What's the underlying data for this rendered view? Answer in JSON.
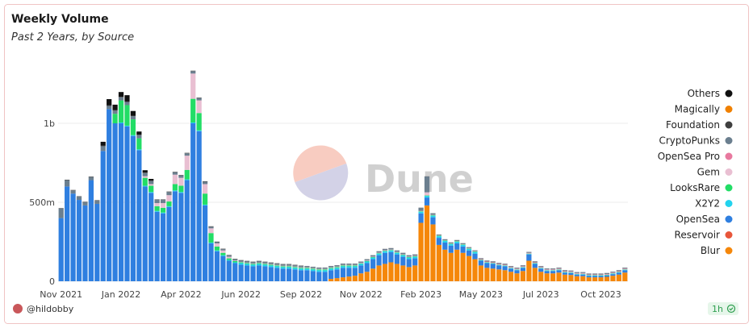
{
  "chart_data": {
    "type": "stacked-bar",
    "title": "Weekly Volume",
    "subtitle": "Past 2 Years, by Source",
    "categories": [
      "Nov 2021",
      null,
      null,
      null,
      null,
      null,
      null,
      null,
      null,
      null,
      "Jan 2022",
      null,
      null,
      null,
      null,
      null,
      null,
      null,
      null,
      null,
      "Apr 2022",
      null,
      null,
      null,
      null,
      null,
      null,
      null,
      null,
      null,
      "Jun 2022",
      null,
      null,
      null,
      null,
      null,
      null,
      null,
      null,
      null,
      "Sep 2022",
      null,
      null,
      null,
      null,
      null,
      null,
      null,
      null,
      null,
      "Nov 2022",
      null,
      null,
      null,
      null,
      null,
      null,
      null,
      null,
      null,
      "Feb 2023",
      null,
      null,
      null,
      null,
      null,
      null,
      null,
      null,
      null,
      "May 2023",
      null,
      null,
      null,
      null,
      null,
      null,
      null,
      null,
      null,
      "Jul 2023",
      null,
      null,
      null,
      null,
      null,
      null,
      null,
      null,
      null,
      "Oct 2023",
      null,
      null,
      null,
      null
    ],
    "ylim": [
      0,
      1400
    ],
    "yticks": [
      0,
      {
        "value": 500,
        "label": "500m"
      },
      {
        "value": 1000,
        "label": "1b"
      }
    ],
    "grid": true,
    "legend": "right",
    "series": [
      {
        "name": "Blur",
        "color": "#f5870a",
        "values": [
          0,
          0,
          0,
          0,
          0,
          0,
          0,
          0,
          0,
          0,
          0,
          0,
          0,
          0,
          0,
          0,
          0,
          0,
          0,
          0,
          0,
          0,
          0,
          0,
          0,
          0,
          0,
          0,
          0,
          0,
          0,
          0,
          0,
          0,
          0,
          0,
          0,
          0,
          0,
          0,
          0,
          0,
          0,
          0,
          0,
          15,
          20,
          25,
          30,
          35,
          50,
          60,
          80,
          100,
          110,
          120,
          110,
          100,
          90,
          100,
          370,
          480,
          360,
          230,
          200,
          180,
          200,
          180,
          160,
          140,
          100,
          85,
          80,
          75,
          70,
          60,
          50,
          65,
          130,
          85,
          60,
          50,
          50,
          55,
          42,
          40,
          32,
          32,
          25,
          25,
          25,
          28,
          35,
          42,
          55
        ]
      },
      {
        "name": "Reservoir",
        "color": "#e8563a",
        "values": [
          0,
          0,
          0,
          0,
          0,
          0,
          0,
          0,
          0,
          0,
          0,
          0,
          0,
          0,
          0,
          0,
          0,
          0,
          0,
          0,
          0,
          0,
          0,
          0,
          0,
          0,
          0,
          0,
          0,
          0,
          0,
          0,
          0,
          0,
          0,
          0,
          0,
          0,
          0,
          0,
          0,
          0,
          0,
          0,
          0,
          0,
          0,
          0,
          0,
          0,
          0,
          0,
          0,
          0,
          0,
          0,
          0,
          0,
          0,
          0,
          0,
          0,
          0,
          0,
          0,
          0,
          0,
          0,
          0,
          0,
          0,
          0,
          0,
          0,
          0,
          0,
          0,
          0,
          0,
          0,
          0,
          0,
          0,
          0,
          0,
          0,
          0,
          0,
          0,
          0,
          0,
          0,
          0,
          0,
          0
        ]
      },
      {
        "name": "OpenSea",
        "color": "#2f7fe0",
        "values": [
          400,
          600,
          555,
          515,
          480,
          640,
          490,
          825,
          1090,
          1000,
          1000,
          980,
          920,
          830,
          600,
          560,
          440,
          430,
          470,
          570,
          560,
          640,
          1000,
          950,
          480,
          240,
          190,
          160,
          130,
          115,
          105,
          100,
          95,
          100,
          95,
          90,
          85,
          80,
          80,
          75,
          70,
          70,
          65,
          60,
          60,
          55,
          55,
          60,
          55,
          50,
          50,
          55,
          60,
          65,
          70,
          65,
          60,
          55,
          50,
          45,
          60,
          50,
          45,
          45,
          45,
          45,
          40,
          40,
          35,
          35,
          30,
          30,
          30,
          25,
          25,
          20,
          20,
          20,
          40,
          25,
          20,
          15,
          15,
          15,
          12,
          12,
          10,
          10,
          8,
          8,
          8,
          8,
          10,
          12,
          15
        ]
      },
      {
        "name": "X2Y2",
        "color": "#22d3ee",
        "values": [
          0,
          0,
          0,
          0,
          0,
          0,
          0,
          0,
          0,
          0,
          5,
          5,
          5,
          5,
          5,
          5,
          5,
          5,
          5,
          5,
          5,
          5,
          5,
          5,
          5,
          5,
          5,
          5,
          5,
          5,
          10,
          10,
          10,
          10,
          10,
          10,
          10,
          10,
          10,
          10,
          10,
          10,
          10,
          10,
          10,
          10,
          10,
          10,
          10,
          10,
          10,
          10,
          10,
          10,
          10,
          10,
          10,
          10,
          10,
          10,
          10,
          10,
          10,
          10,
          10,
          10,
          10,
          10,
          10,
          10,
          3,
          3,
          3,
          3,
          3,
          3,
          3,
          3,
          3,
          3,
          3,
          3,
          3,
          3,
          3,
          3,
          3,
          3,
          3,
          3,
          3,
          3,
          3,
          3,
          3
        ]
      },
      {
        "name": "LooksRare",
        "color": "#22dd66",
        "values": [
          0,
          0,
          0,
          0,
          0,
          0,
          0,
          0,
          0,
          60,
          140,
          130,
          100,
          70,
          50,
          40,
          30,
          30,
          30,
          40,
          40,
          60,
          150,
          110,
          70,
          60,
          25,
          15,
          10,
          8,
          5,
          5,
          5,
          5,
          5,
          5,
          5,
          5,
          5,
          5,
          5,
          5,
          5,
          5,
          5,
          5,
          5,
          5,
          5,
          5,
          3,
          3,
          3,
          3,
          3,
          3,
          3,
          3,
          3,
          3,
          3,
          3,
          3,
          3,
          3,
          3,
          3,
          3,
          3,
          3,
          2,
          2,
          2,
          2,
          2,
          2,
          2,
          2,
          2,
          2,
          2,
          2,
          2,
          2,
          2,
          2,
          2,
          2,
          2,
          2,
          2,
          2,
          2,
          2,
          2
        ]
      },
      {
        "name": "Gem",
        "color": "#e9bfd2",
        "values": [
          0,
          0,
          0,
          0,
          0,
          0,
          0,
          0,
          0,
          0,
          0,
          0,
          0,
          0,
          10,
          10,
          20,
          30,
          40,
          60,
          50,
          90,
          160,
          80,
          60,
          30,
          20,
          15,
          10,
          3,
          3,
          3,
          3,
          3,
          3,
          3,
          3,
          3,
          3,
          3,
          3,
          3,
          3,
          3,
          3,
          3,
          3,
          3,
          3,
          3,
          3,
          3,
          3,
          3,
          3,
          3,
          3,
          3,
          3,
          3,
          2,
          20,
          2,
          2,
          2,
          2,
          2,
          2,
          2,
          2,
          2,
          2,
          2,
          2,
          2,
          2,
          2,
          2,
          2,
          2,
          2,
          2,
          2,
          2,
          2,
          2,
          2,
          2,
          2,
          2,
          2,
          2,
          2,
          2,
          2
        ]
      },
      {
        "name": "OpenSea Pro",
        "color": "#e8799f",
        "values": [
          0,
          0,
          0,
          0,
          0,
          0,
          0,
          0,
          0,
          0,
          0,
          0,
          0,
          0,
          0,
          0,
          0,
          0,
          0,
          0,
          0,
          0,
          0,
          0,
          0,
          0,
          0,
          0,
          0,
          0,
          0,
          0,
          0,
          0,
          0,
          0,
          0,
          0,
          0,
          0,
          0,
          0,
          0,
          0,
          0,
          0,
          0,
          0,
          0,
          0,
          0,
          0,
          0,
          0,
          0,
          0,
          0,
          0,
          0,
          0,
          0,
          0,
          0,
          0,
          0,
          0,
          0,
          0,
          0,
          0,
          3,
          3,
          3,
          3,
          3,
          3,
          3,
          3,
          3,
          3,
          3,
          3,
          3,
          3,
          3,
          3,
          3,
          3,
          3,
          3,
          3,
          3,
          3,
          3,
          3
        ]
      },
      {
        "name": "CryptoPunks",
        "color": "#6b7f8f",
        "values": [
          60,
          40,
          20,
          20,
          20,
          20,
          20,
          30,
          20,
          20,
          20,
          20,
          20,
          20,
          20,
          20,
          20,
          20,
          20,
          15,
          15,
          15,
          15,
          15,
          15,
          10,
          8,
          8,
          8,
          8,
          8,
          8,
          8,
          8,
          8,
          8,
          8,
          8,
          8,
          8,
          8,
          8,
          8,
          8,
          8,
          8,
          8,
          8,
          8,
          8,
          8,
          8,
          8,
          8,
          8,
          8,
          8,
          8,
          8,
          8,
          20,
          100,
          10,
          5,
          5,
          5,
          5,
          5,
          5,
          5,
          5,
          5,
          5,
          5,
          5,
          5,
          5,
          5,
          5,
          5,
          5,
          5,
          5,
          5,
          5,
          5,
          5,
          5,
          5,
          5,
          5,
          5,
          5,
          5,
          5
        ]
      },
      {
        "name": "Foundation",
        "color": "#3f3f3f",
        "values": [
          3,
          3,
          3,
          3,
          3,
          3,
          3,
          3,
          3,
          3,
          3,
          3,
          3,
          3,
          3,
          3,
          3,
          3,
          3,
          3,
          3,
          3,
          3,
          3,
          3,
          3,
          3,
          3,
          3,
          3,
          3,
          3,
          3,
          3,
          3,
          3,
          3,
          3,
          3,
          3,
          3,
          1,
          1,
          1,
          1,
          1,
          1,
          1,
          1,
          1,
          1,
          1,
          1,
          1,
          1,
          1,
          1,
          1,
          1,
          1,
          1,
          1,
          1,
          1,
          1,
          1,
          1,
          1,
          1,
          1,
          1,
          1,
          1,
          1,
          1,
          1,
          1,
          1,
          1,
          1,
          1,
          1,
          1,
          1,
          1,
          1,
          1,
          1,
          1,
          1,
          1,
          1,
          1,
          1,
          1
        ]
      },
      {
        "name": "Magically",
        "color": "#f08000",
        "values": [
          0,
          0,
          0,
          0,
          0,
          0,
          0,
          0,
          0,
          0,
          0,
          0,
          0,
          0,
          0,
          0,
          0,
          0,
          0,
          0,
          0,
          0,
          0,
          0,
          0,
          0,
          0,
          0,
          0,
          0,
          0,
          0,
          0,
          0,
          0,
          0,
          0,
          0,
          0,
          0,
          0,
          0,
          0,
          0,
          0,
          0,
          0,
          0,
          0,
          0,
          0,
          0,
          0,
          0,
          0,
          0,
          0,
          0,
          0,
          0,
          0,
          0,
          0,
          0,
          0,
          0,
          0,
          0,
          0,
          0,
          0,
          0,
          0,
          0,
          0,
          0,
          0,
          0,
          0,
          0,
          0,
          0,
          0,
          0,
          0,
          0,
          0,
          0,
          0,
          0,
          0,
          0,
          0,
          0,
          0
        ]
      },
      {
        "name": "Others",
        "color": "#111111",
        "values": [
          0,
          0,
          0,
          0,
          0,
          0,
          0,
          25,
          40,
          35,
          30,
          40,
          30,
          20,
          15,
          10,
          0,
          0,
          0,
          0,
          0,
          0,
          0,
          0,
          0,
          0,
          0,
          0,
          0,
          0,
          0,
          0,
          0,
          0,
          0,
          0,
          0,
          0,
          0,
          0,
          0,
          0,
          0,
          0,
          0,
          0,
          0,
          0,
          0,
          0,
          0,
          0,
          0,
          0,
          0,
          0,
          0,
          0,
          0,
          0,
          0,
          0,
          0,
          0,
          0,
          0,
          0,
          0,
          0,
          0,
          0,
          0,
          0,
          0,
          0,
          0,
          0,
          0,
          0,
          0,
          0,
          0,
          0,
          0,
          0,
          0,
          0,
          0,
          0,
          0,
          0,
          0,
          0,
          0,
          0
        ]
      }
    ]
  },
  "watermark": "Dune",
  "footer": {
    "author": "@hildobby",
    "refresh": "1h"
  }
}
